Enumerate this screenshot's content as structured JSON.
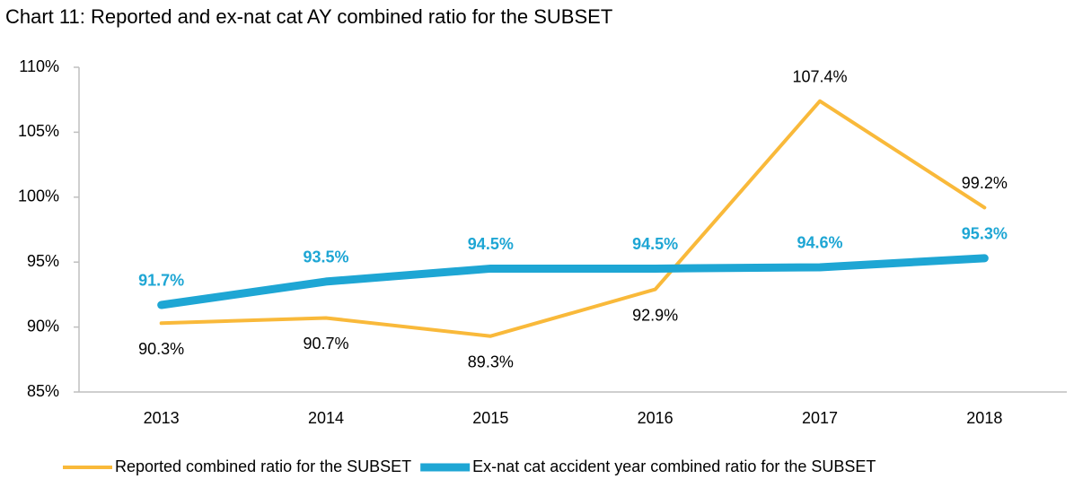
{
  "chart_data": {
    "type": "line",
    "title": "Chart 11: Reported and ex-nat cat AY combined ratio for the SUBSET",
    "categories": [
      "2013",
      "2014",
      "2015",
      "2016",
      "2017",
      "2018"
    ],
    "series": [
      {
        "name": "Reported combined ratio for the SUBSET",
        "color": "#f9b93a",
        "values": [
          90.3,
          90.7,
          89.3,
          92.9,
          107.4,
          99.2
        ],
        "value_labels": [
          "90.3%",
          "90.7%",
          "89.3%",
          "92.9%",
          "107.4%",
          "99.2%"
        ]
      },
      {
        "name": "Ex-nat cat accident year combined ratio for the SUBSET",
        "color": "#1ea6d4",
        "values": [
          91.7,
          93.5,
          94.5,
          94.5,
          94.6,
          95.3
        ],
        "value_labels": [
          "91.7%",
          "93.5%",
          "94.5%",
          "94.5%",
          "94.6%",
          "95.3%"
        ]
      }
    ],
    "ylim": [
      85,
      110
    ],
    "yticks": [
      {
        "value": 85,
        "label": "85%"
      },
      {
        "value": 90,
        "label": "90%"
      },
      {
        "value": 95,
        "label": "95%"
      },
      {
        "value": 100,
        "label": "100%"
      },
      {
        "value": 105,
        "label": "105%"
      },
      {
        "value": 110,
        "label": "110%"
      }
    ],
    "grid": false,
    "legend": "bottom"
  }
}
